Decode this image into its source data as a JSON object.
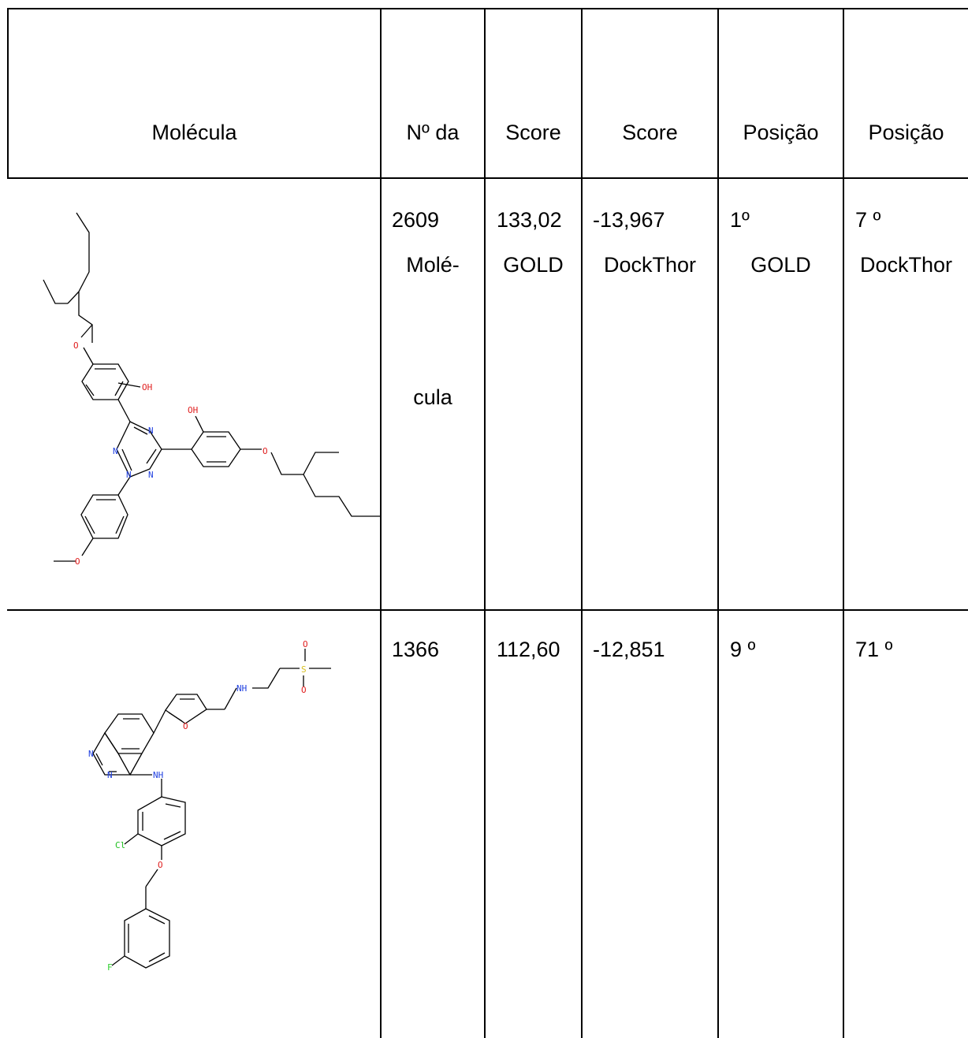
{
  "table": {
    "headers": [
      {
        "lines": [
          "Molécula"
        ]
      },
      {
        "lines": [
          "Nº da",
          "Molé-",
          "cula"
        ]
      },
      {
        "lines": [
          "Score",
          "GOLD"
        ]
      },
      {
        "lines": [
          "Score",
          "DockThor"
        ]
      },
      {
        "lines": [
          "Posição",
          "GOLD"
        ]
      },
      {
        "lines": [
          "Posição",
          "DockThor"
        ]
      }
    ],
    "rows": [
      {
        "number": "2609",
        "score_gold": "133,02",
        "score_dockthor": "-13,967",
        "pos_gold": "1º",
        "pos_dockthor": "7 º",
        "atoms": {
          "o1": "O",
          "oh1": "OH",
          "oh2": "OH",
          "n1": "N",
          "n2": "N",
          "n3": "N",
          "n4": "N",
          "o2": "O",
          "o3": "O"
        }
      },
      {
        "number": "1366",
        "score_gold": "112,60",
        "score_dockthor": "-12,851",
        "pos_gold": "9 º",
        "pos_dockthor": "71 º",
        "atoms": {
          "s": "S",
          "o_top": "O",
          "o_bot": "O",
          "nh1": "NH",
          "o_furan": "O",
          "n1": "N",
          "n2": "N",
          "nh2": "NH",
          "cl": "Cl",
          "o_ether": "O",
          "f": "F"
        }
      }
    ]
  },
  "colors": {
    "oxygen": "#e02020",
    "nitrogen": "#2040e0",
    "sulfur": "#d8c020",
    "chlorine": "#20c020",
    "fluorine": "#30d030",
    "bond": "#000000"
  }
}
